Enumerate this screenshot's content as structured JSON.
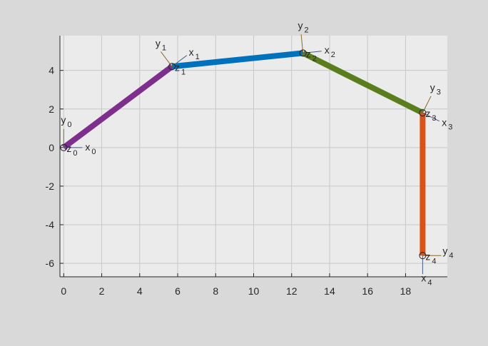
{
  "chart_data": {
    "type": "line",
    "title": "",
    "xlabel": "",
    "ylabel": "",
    "xlim": [
      -0.2,
      20.2
    ],
    "ylim": [
      -6.7,
      5.8
    ],
    "xticks": [
      0,
      2,
      4,
      6,
      8,
      10,
      12,
      14,
      16,
      18
    ],
    "yticks": [
      -6,
      -4,
      -2,
      0,
      2,
      4
    ],
    "grid": true,
    "background_color": "#ebebeb",
    "links": [
      {
        "from": [
          0,
          0
        ],
        "to": [
          5.7,
          4.2
        ],
        "color": "#7e2f8e"
      },
      {
        "from": [
          5.7,
          4.2
        ],
        "to": [
          12.6,
          4.9
        ],
        "color": "#0072bd"
      },
      {
        "from": [
          12.6,
          4.9
        ],
        "to": [
          18.9,
          1.8
        ],
        "color": "#5a7d1e"
      },
      {
        "from": [
          18.9,
          1.8
        ],
        "to": [
          18.9,
          -5.6
        ],
        "color": "#d95319"
      }
    ],
    "frames": [
      {
        "origin": [
          0,
          0
        ],
        "x_label": "x",
        "y_label": "y",
        "z_label": "z",
        "sub": "0",
        "x_dir": [
          1.0,
          0.0
        ],
        "y_dir": [
          0.0,
          1.0
        ]
      },
      {
        "origin": [
          5.7,
          4.2
        ],
        "x_label": "x",
        "y_label": "y",
        "z_label": "z",
        "sub": "1",
        "x_dir": [
          0.8,
          0.6
        ],
        "y_dir": [
          -0.6,
          0.8
        ]
      },
      {
        "origin": [
          12.6,
          4.9
        ],
        "x_label": "x",
        "y_label": "y",
        "z_label": "z",
        "sub": "2",
        "x_dir": [
          1.0,
          0.1
        ],
        "y_dir": [
          -0.1,
          1.0
        ]
      },
      {
        "origin": [
          18.9,
          1.8
        ],
        "x_label": "x",
        "y_label": "y",
        "z_label": "z",
        "sub": "3",
        "x_dir": [
          0.9,
          -0.45
        ],
        "y_dir": [
          0.45,
          0.9
        ]
      },
      {
        "origin": [
          18.9,
          -5.6
        ],
        "x_label": "x",
        "y_label": "y",
        "z_label": "z",
        "sub": "4",
        "x_dir": [
          0.0,
          -1.0
        ],
        "y_dir": [
          1.0,
          0.0
        ]
      }
    ]
  }
}
